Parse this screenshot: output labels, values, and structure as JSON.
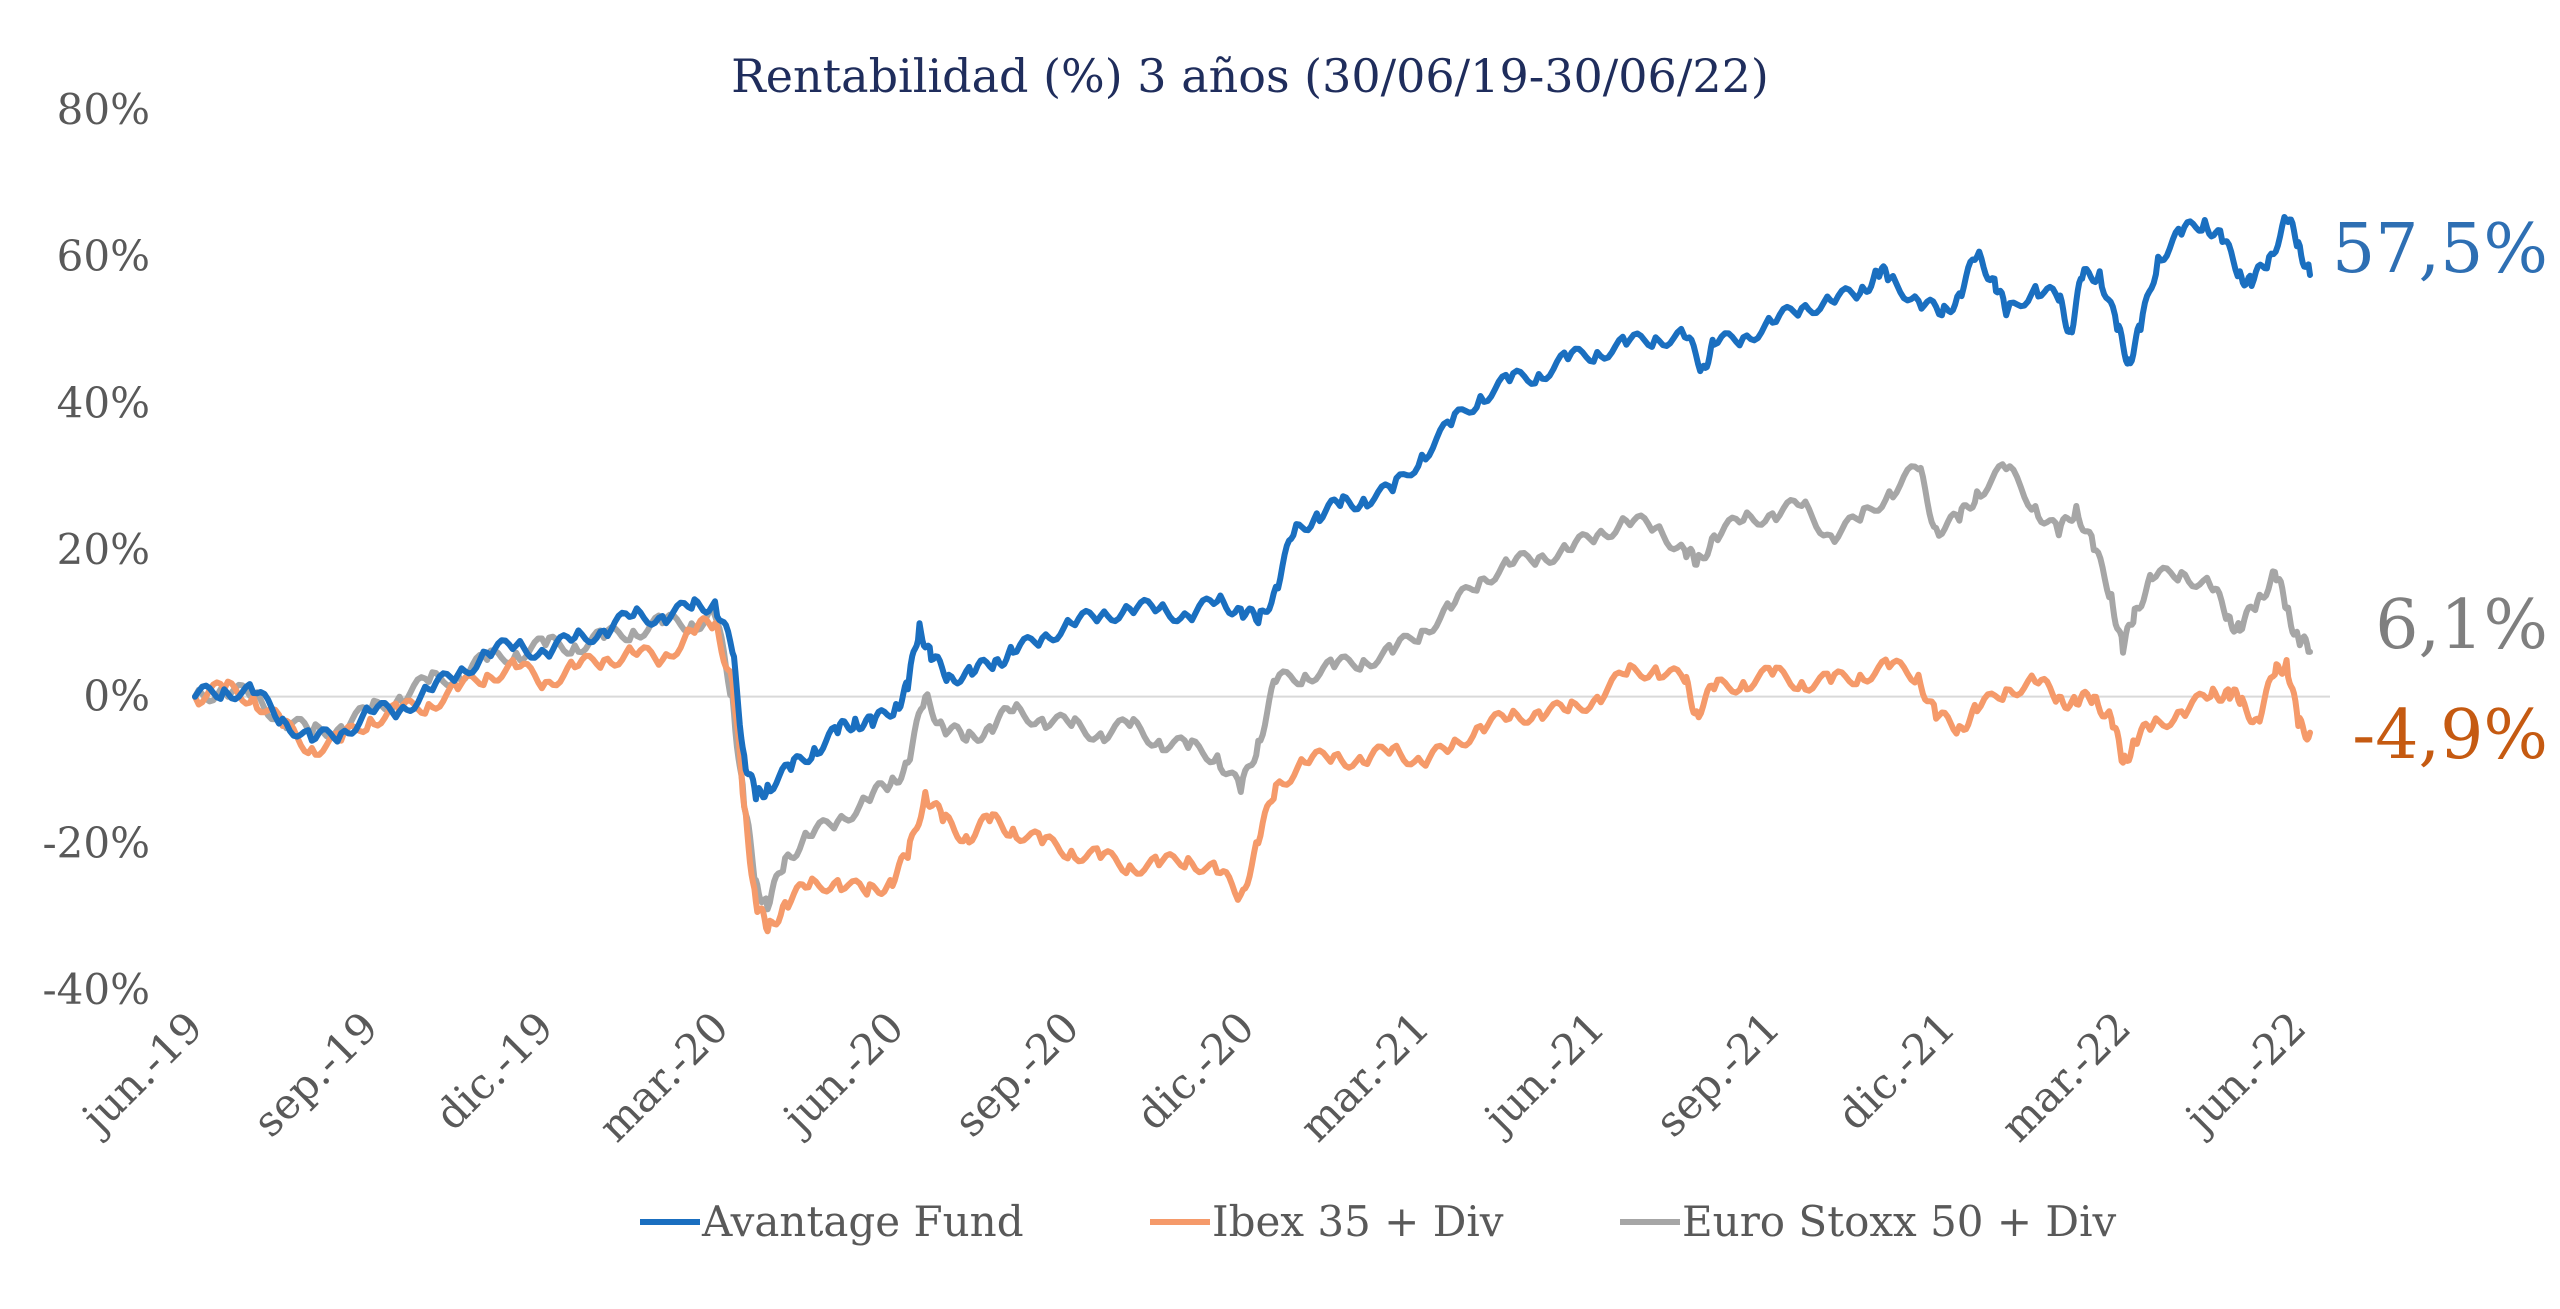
{
  "chart_data": {
    "type": "line",
    "title": "Rentabilidad (%) 3 años (30/06/19-30/06/22)",
    "xlabel": "",
    "ylabel": "",
    "ylim": [
      -40,
      80
    ],
    "y_ticks": [
      80,
      60,
      40,
      20,
      0,
      -20,
      -40
    ],
    "y_tick_labels": [
      "80%",
      "60%",
      "40%",
      "20%",
      "0%",
      "-20%",
      "-40%"
    ],
    "x_tick_labels": [
      "jun.-19",
      "sep.-19",
      "dic.-19",
      "mar.-20",
      "jun.-20",
      "sep.-20",
      "dic.-20",
      "mar.-21",
      "jun.-21",
      "sep.-21",
      "dic.-21",
      "mar.-22",
      "jun.-22"
    ],
    "x_tick_positions": [
      0,
      3,
      6,
      9,
      12,
      15,
      18,
      21,
      24,
      27,
      30,
      33,
      36
    ],
    "x_unit": "months since 30/06/2019",
    "legend_position": "bottom",
    "grid": false,
    "series": [
      {
        "name": "Avantage Fund",
        "color": "#1a6fc0",
        "end_label": "57,5%",
        "end_label_color": "#2e6fb3",
        "points": [
          [
            0,
            0
          ],
          [
            0.5,
            1
          ],
          [
            1,
            0.5
          ],
          [
            1.5,
            -3
          ],
          [
            2,
            -6
          ],
          [
            2.5,
            -5
          ],
          [
            3,
            -2
          ],
          [
            3.5,
            -2
          ],
          [
            4,
            1
          ],
          [
            4.5,
            3
          ],
          [
            5,
            6
          ],
          [
            5.5,
            7
          ],
          [
            6,
            6
          ],
          [
            6.5,
            8
          ],
          [
            7,
            9
          ],
          [
            7.5,
            11
          ],
          [
            8,
            11
          ],
          [
            8.5,
            12
          ],
          [
            8.9,
            13
          ],
          [
            9.2,
            6
          ],
          [
            9.4,
            -8
          ],
          [
            9.6,
            -14
          ],
          [
            9.8,
            -12
          ],
          [
            10.2,
            -10
          ],
          [
            10.6,
            -7
          ],
          [
            11,
            -5
          ],
          [
            11.3,
            -3
          ],
          [
            11.6,
            -4
          ],
          [
            12,
            -1
          ],
          [
            12.2,
            1
          ],
          [
            12.4,
            10
          ],
          [
            12.6,
            5
          ],
          [
            12.9,
            3
          ],
          [
            13.3,
            3
          ],
          [
            13.7,
            5
          ],
          [
            14,
            6
          ],
          [
            14.5,
            8
          ],
          [
            15,
            10
          ],
          [
            15.5,
            11
          ],
          [
            16,
            12
          ],
          [
            16.5,
            12
          ],
          [
            17,
            11
          ],
          [
            17.5,
            13
          ],
          [
            17.9,
            12
          ],
          [
            18.2,
            10
          ],
          [
            18.5,
            15
          ],
          [
            18.8,
            22
          ],
          [
            19.2,
            25
          ],
          [
            19.6,
            26
          ],
          [
            20,
            27
          ],
          [
            20.5,
            28
          ],
          [
            21,
            33
          ],
          [
            21.5,
            37
          ],
          [
            22,
            41
          ],
          [
            22.5,
            43
          ],
          [
            23,
            44
          ],
          [
            23.5,
            46
          ],
          [
            24,
            47
          ],
          [
            24.5,
            48
          ],
          [
            25,
            49
          ],
          [
            25.5,
            49
          ],
          [
            25.8,
            45
          ],
          [
            26,
            48
          ],
          [
            26.5,
            49
          ],
          [
            27,
            51
          ],
          [
            27.5,
            53
          ],
          [
            28,
            54
          ],
          [
            28.5,
            55
          ],
          [
            28.8,
            58
          ],
          [
            29,
            57
          ],
          [
            29.5,
            54
          ],
          [
            29.9,
            52
          ],
          [
            30.2,
            55
          ],
          [
            30.5,
            60
          ],
          [
            30.8,
            57
          ],
          [
            31,
            52
          ],
          [
            31.5,
            56
          ],
          [
            31.9,
            54
          ],
          [
            32.1,
            50
          ],
          [
            32.3,
            57
          ],
          [
            32.6,
            58
          ],
          [
            32.9,
            50
          ],
          [
            33.1,
            46
          ],
          [
            33.3,
            50
          ],
          [
            33.6,
            60
          ],
          [
            34,
            63
          ],
          [
            34.4,
            65
          ],
          [
            34.7,
            62
          ],
          [
            35,
            58
          ],
          [
            35.2,
            56
          ],
          [
            35.5,
            60
          ],
          [
            35.8,
            65
          ],
          [
            36,
            62
          ],
          [
            36.2,
            57.5
          ]
        ]
      },
      {
        "name": "Ibex 35 + Div",
        "color": "#f59a6a",
        "end_label": "-4,9%",
        "end_label_color": "#c55a11",
        "points": [
          [
            0,
            0
          ],
          [
            0.5,
            1
          ],
          [
            1,
            0
          ],
          [
            1.5,
            -4
          ],
          [
            2,
            -7
          ],
          [
            2.5,
            -6
          ],
          [
            3,
            -3
          ],
          [
            3.5,
            -2
          ],
          [
            4,
            -1
          ],
          [
            4.5,
            1
          ],
          [
            5,
            3
          ],
          [
            5.5,
            4
          ],
          [
            6,
            2
          ],
          [
            6.5,
            4
          ],
          [
            7,
            5
          ],
          [
            7.5,
            6
          ],
          [
            8,
            5
          ],
          [
            8.5,
            9
          ],
          [
            8.9,
            10
          ],
          [
            9.2,
            2
          ],
          [
            9.4,
            -15
          ],
          [
            9.6,
            -28
          ],
          [
            9.8,
            -32
          ],
          [
            10.1,
            -28
          ],
          [
            10.5,
            -26
          ],
          [
            11,
            -25
          ],
          [
            11.5,
            -27
          ],
          [
            11.9,
            -25
          ],
          [
            12.2,
            -22
          ],
          [
            12.5,
            -13
          ],
          [
            12.8,
            -17
          ],
          [
            13.2,
            -19
          ],
          [
            13.6,
            -17
          ],
          [
            14,
            -18
          ],
          [
            14.5,
            -20
          ],
          [
            15,
            -21
          ],
          [
            15.5,
            -22
          ],
          [
            16,
            -23
          ],
          [
            16.5,
            -23
          ],
          [
            17,
            -22
          ],
          [
            17.5,
            -24
          ],
          [
            17.9,
            -27
          ],
          [
            18.2,
            -20
          ],
          [
            18.5,
            -12
          ],
          [
            19,
            -9
          ],
          [
            19.5,
            -8
          ],
          [
            20,
            -9
          ],
          [
            20.5,
            -7
          ],
          [
            21,
            -9
          ],
          [
            21.5,
            -7
          ],
          [
            22,
            -4
          ],
          [
            22.5,
            -3
          ],
          [
            23,
            -2
          ],
          [
            23.5,
            -2
          ],
          [
            24,
            0
          ],
          [
            24.5,
            3
          ],
          [
            25,
            4
          ],
          [
            25.5,
            2
          ],
          [
            25.7,
            -2
          ],
          [
            26,
            1
          ],
          [
            26.5,
            2
          ],
          [
            27,
            3
          ],
          [
            27.5,
            2
          ],
          [
            28,
            2
          ],
          [
            28.5,
            3
          ],
          [
            29,
            4
          ],
          [
            29.5,
            3
          ],
          [
            29.8,
            -3
          ],
          [
            30.2,
            -4
          ],
          [
            30.5,
            -2
          ],
          [
            31,
            1
          ],
          [
            31.5,
            2
          ],
          [
            31.9,
            0
          ],
          [
            32.2,
            -1
          ],
          [
            32.5,
            0
          ],
          [
            32.8,
            -3
          ],
          [
            33,
            -9
          ],
          [
            33.2,
            -6
          ],
          [
            33.5,
            -4
          ],
          [
            34,
            -2
          ],
          [
            34.5,
            0
          ],
          [
            34.8,
            1
          ],
          [
            35,
            -1
          ],
          [
            35.3,
            -3
          ],
          [
            35.6,
            3
          ],
          [
            35.8,
            5
          ],
          [
            36,
            -4
          ],
          [
            36.2,
            -4.9
          ]
        ]
      },
      {
        "name": "Euro Stoxx 50 + Div",
        "color": "#a6a6a6",
        "end_label": "6,1%",
        "end_label_color": "#7f7f7f",
        "points": [
          [
            0,
            0
          ],
          [
            0.5,
            1
          ],
          [
            1,
            0
          ],
          [
            1.5,
            -3
          ],
          [
            2,
            -5
          ],
          [
            2.5,
            -4
          ],
          [
            3,
            -2
          ],
          [
            3.5,
            0
          ],
          [
            4,
            2
          ],
          [
            4.5,
            3
          ],
          [
            5,
            5
          ],
          [
            5.5,
            6
          ],
          [
            6,
            7
          ],
          [
            6.5,
            7
          ],
          [
            7,
            8
          ],
          [
            7.5,
            9
          ],
          [
            8,
            10
          ],
          [
            8.5,
            10
          ],
          [
            8.9,
            11
          ],
          [
            9.2,
            0
          ],
          [
            9.4,
            -15
          ],
          [
            9.6,
            -25
          ],
          [
            9.8,
            -29
          ],
          [
            10.1,
            -22
          ],
          [
            10.5,
            -19
          ],
          [
            11,
            -17
          ],
          [
            11.5,
            -14
          ],
          [
            11.9,
            -12
          ],
          [
            12.2,
            -9
          ],
          [
            12.5,
            0
          ],
          [
            12.8,
            -4
          ],
          [
            13.2,
            -6
          ],
          [
            13.6,
            -4
          ],
          [
            14,
            -2
          ],
          [
            14.5,
            -3
          ],
          [
            15,
            -4
          ],
          [
            15.5,
            -5
          ],
          [
            16,
            -4
          ],
          [
            16.5,
            -6
          ],
          [
            17,
            -7
          ],
          [
            17.5,
            -8
          ],
          [
            17.9,
            -13
          ],
          [
            18.2,
            -6
          ],
          [
            18.5,
            2
          ],
          [
            19,
            3
          ],
          [
            19.5,
            4
          ],
          [
            20,
            5
          ],
          [
            20.5,
            6
          ],
          [
            21,
            9
          ],
          [
            21.5,
            12
          ],
          [
            22,
            16
          ],
          [
            22.5,
            18
          ],
          [
            23,
            19
          ],
          [
            23.5,
            20
          ],
          [
            24,
            22
          ],
          [
            24.5,
            24
          ],
          [
            25,
            23
          ],
          [
            25.5,
            20
          ],
          [
            25.7,
            18
          ],
          [
            26,
            22
          ],
          [
            26.5,
            24
          ],
          [
            27,
            25
          ],
          [
            27.5,
            26
          ],
          [
            28,
            22
          ],
          [
            28.5,
            24
          ],
          [
            29,
            28
          ],
          [
            29.5,
            31
          ],
          [
            29.8,
            23
          ],
          [
            30.2,
            24
          ],
          [
            30.5,
            28
          ],
          [
            31,
            31
          ],
          [
            31.5,
            26
          ],
          [
            31.9,
            22
          ],
          [
            32.2,
            26
          ],
          [
            32.5,
            20
          ],
          [
            32.8,
            14
          ],
          [
            33,
            6
          ],
          [
            33.2,
            12
          ],
          [
            33.5,
            16
          ],
          [
            34,
            17
          ],
          [
            34.5,
            15
          ],
          [
            34.8,
            11
          ],
          [
            35,
            9
          ],
          [
            35.3,
            13
          ],
          [
            35.6,
            17
          ],
          [
            35.8,
            12
          ],
          [
            36,
            8
          ],
          [
            36.2,
            6.1
          ]
        ]
      }
    ]
  }
}
